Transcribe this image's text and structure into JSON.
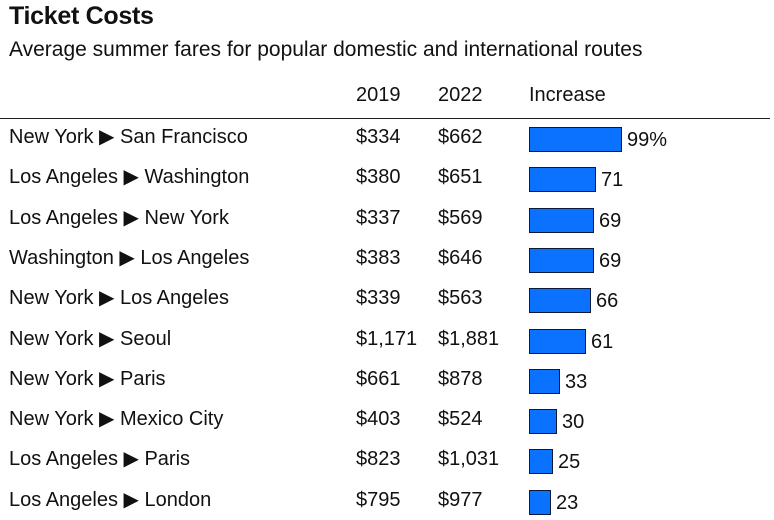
{
  "colors": {
    "bar": "#0a72ff",
    "text": "#111111"
  },
  "chart_data": {
    "type": "table",
    "title": "Ticket Costs",
    "subtitle": "Average summer fares for popular domestic and international routes",
    "columns": [
      "",
      "2019",
      "2022",
      "Increase"
    ],
    "bar_max": 100,
    "rows": [
      {
        "route": "New York ▶ San Francisco",
        "y2019": "$334",
        "y2022": "$662",
        "increase": 99,
        "label": "99%"
      },
      {
        "route": "Los Angeles ▶ Washington",
        "y2019": "$380",
        "y2022": "$651",
        "increase": 71,
        "label": "71"
      },
      {
        "route": "Los Angeles ▶ New York",
        "y2019": "$337",
        "y2022": "$569",
        "increase": 69,
        "label": "69"
      },
      {
        "route": "Washington ▶ Los Angeles",
        "y2019": "$383",
        "y2022": "$646",
        "increase": 69,
        "label": "69"
      },
      {
        "route": "New York ▶ Los Angeles",
        "y2019": "$339",
        "y2022": "$563",
        "increase": 66,
        "label": "66"
      },
      {
        "route": "New York ▶ Seoul",
        "y2019": "$1,171",
        "y2022": "$1,881",
        "increase": 61,
        "label": "61"
      },
      {
        "route": "New York ▶ Paris",
        "y2019": "$661",
        "y2022": "$878",
        "increase": 33,
        "label": "33"
      },
      {
        "route": "New York ▶ Mexico City",
        "y2019": "$403",
        "y2022": "$524",
        "increase": 30,
        "label": "30"
      },
      {
        "route": "Los Angeles ▶ Paris",
        "y2019": "$823",
        "y2022": "$1,031",
        "increase": 25,
        "label": "25"
      },
      {
        "route": "Los Angeles ▶ London",
        "y2019": "$795",
        "y2022": "$977",
        "increase": 23,
        "label": "23"
      }
    ]
  }
}
